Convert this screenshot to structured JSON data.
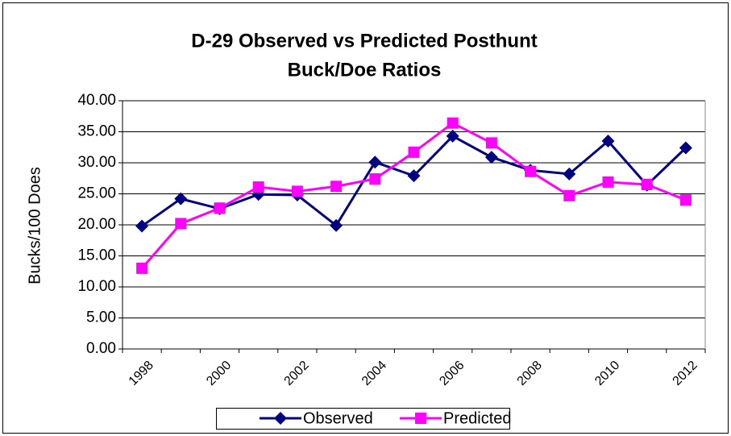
{
  "chart_data": {
    "type": "line",
    "title": [
      "D-29 Observed vs Predicted Posthunt",
      "Buck/Doe Ratios"
    ],
    "y_label": "Bucks/100 Does",
    "categories": [
      "1998",
      null,
      "2000",
      null,
      "2002",
      null,
      "2004",
      null,
      "2006",
      null,
      "2008",
      null,
      "2010",
      null,
      "2012"
    ],
    "series": [
      {
        "name": "Observed",
        "color": "#000080",
        "marker": "diamond",
        "values": [
          19.8,
          24.2,
          22.6,
          24.9,
          24.8,
          19.9,
          30.1,
          27.9,
          34.3,
          30.9,
          28.8,
          28.2,
          33.5,
          26.4,
          32.4
        ]
      },
      {
        "name": "Predicted",
        "color": "#ff00ff",
        "marker": "square",
        "values": [
          13.0,
          20.2,
          22.7,
          26.1,
          25.4,
          26.2,
          27.4,
          31.7,
          36.4,
          33.2,
          28.6,
          24.7,
          26.9,
          26.5,
          24.0
        ]
      }
    ],
    "ylim": [
      0,
      40
    ],
    "yticks": [
      {
        "value": 0,
        "label": "0.00"
      },
      {
        "value": 5,
        "label": "5.00"
      },
      {
        "value": 10,
        "label": "10.00"
      },
      {
        "value": 15,
        "label": "15.00"
      },
      {
        "value": 20,
        "label": "20.00"
      },
      {
        "value": 25,
        "label": "25.00"
      },
      {
        "value": 30,
        "label": "30.00"
      },
      {
        "value": 35,
        "label": "35.00"
      },
      {
        "value": 40,
        "label": "40.00"
      }
    ],
    "grid": true,
    "legend": "bottom"
  }
}
